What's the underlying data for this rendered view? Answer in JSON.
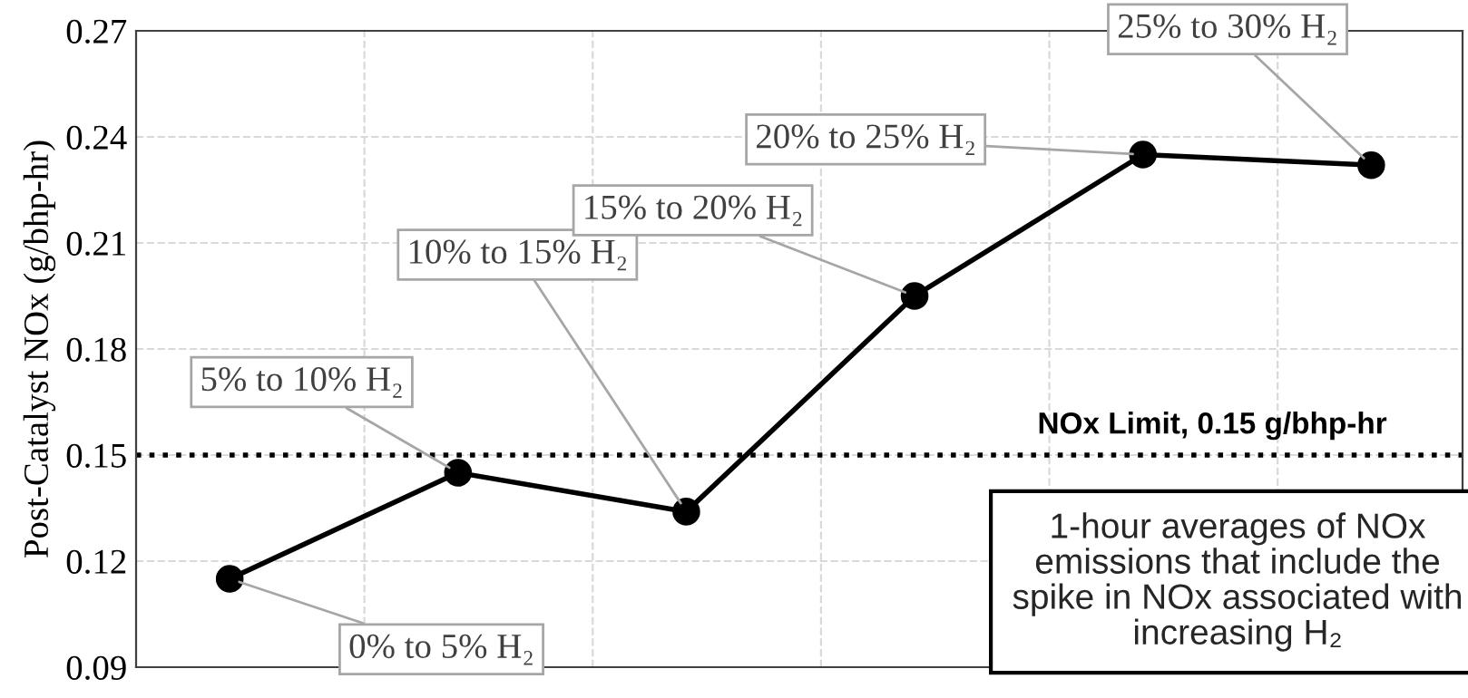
{
  "chart_data": {
    "type": "line",
    "ylabel": "Post-Catalyst NOx (g/bhp-hr)",
    "categories": [
      null,
      null,
      null,
      null,
      null,
      null
    ],
    "series": [
      {
        "color": "#000000",
        "values": [
          0.115,
          0.145,
          0.134,
          0.195,
          0.235,
          0.232
        ]
      }
    ],
    "ylim": [
      0.09,
      0.27
    ],
    "yticks": [
      0.09,
      0.12,
      0.15,
      0.18,
      0.21,
      0.24,
      0.27
    ],
    "grid": true,
    "marker": "circle",
    "line_style": "solid",
    "ref_lines": [
      {
        "axis": "y",
        "value": 0.15,
        "label": "NOx Limit, 0.15 g/bhp-hr",
        "color": "#000000",
        "line_style": "dotted"
      }
    ],
    "annotations": [
      "0% to 5% H₂",
      "5% to 10% H₂",
      "10% to 15% H₂",
      "15% to 20% H₂",
      "20% to 25% H₂",
      "25% to 30% H₂",
      "1-hour averages of NOx emissions that include the spike in NOx associated with increasing H₂"
    ]
  }
}
